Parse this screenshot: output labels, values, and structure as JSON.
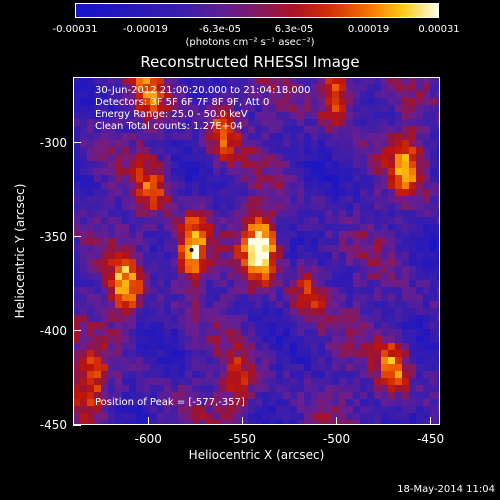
{
  "colorbar": {
    "ticks": [
      "-0.00031",
      "-0.00019",
      "-6.3e-05",
      "6.3e-05",
      "0.00019",
      "0.00031"
    ],
    "units": "(photons cm⁻² s⁻¹ asec⁻²)",
    "range": [
      -0.00031,
      0.00031
    ]
  },
  "chart_data": {
    "type": "heatmap",
    "title": "Reconstructed RHESSI Image",
    "xlabel": "Heliocentric X (arcsec)",
    "ylabel": "Heliocentric Y (arcsec)",
    "xlim": [
      -640,
      -445
    ],
    "ylim": [
      -450,
      -265
    ],
    "xticks": [
      "-600",
      "-550",
      "-500",
      "-450"
    ],
    "yticks": [
      "-300",
      "-350",
      "-400",
      "-450"
    ],
    "info_lines": [
      "30-Jun-2012 21:00:20.000 to 21:04:18.000",
      "Detectors: 3F 5F 6F 7F 8F 9F, Att 0",
      "Energy Range: 25.0 - 50.0 keV",
      "Clean     Total counts: 1.27E+04"
    ],
    "peak_label": "Position of Peak = [-577,-357]",
    "peak": [
      -577,
      -357
    ],
    "hot_spots": [
      {
        "x": -577,
        "y": -357,
        "level": 1.0
      },
      {
        "x": -540,
        "y": -355,
        "level": 0.95
      },
      {
        "x": -612,
        "y": -378,
        "level": 0.7
      },
      {
        "x": -515,
        "y": -380,
        "level": 0.55
      },
      {
        "x": -560,
        "y": -292,
        "level": 0.6
      },
      {
        "x": -500,
        "y": -272,
        "level": 0.75
      },
      {
        "x": -462,
        "y": -310,
        "level": 0.6
      },
      {
        "x": -598,
        "y": -325,
        "level": 0.45
      },
      {
        "x": -470,
        "y": -420,
        "level": 0.65
      },
      {
        "x": -630,
        "y": -430,
        "level": 0.55
      },
      {
        "x": -552,
        "y": -430,
        "level": 0.45
      },
      {
        "x": -600,
        "y": -272,
        "level": 0.45
      }
    ]
  },
  "timestamp": "18-May-2014 11:04"
}
